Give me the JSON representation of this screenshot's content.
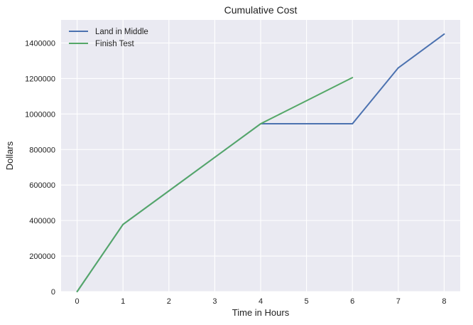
{
  "chart_data": {
    "type": "line",
    "title": "Cumulative Cost",
    "xlabel": "Time in Hours",
    "ylabel": "Dollars",
    "xlim": [
      -0.35,
      8.35
    ],
    "ylim": [
      0,
      1530000
    ],
    "xticks": [
      0,
      1,
      2,
      3,
      4,
      5,
      6,
      7,
      8
    ],
    "xtick_labels": [
      "0",
      "1",
      "2",
      "3",
      "4",
      "5",
      "6",
      "7",
      "8"
    ],
    "yticks": [
      0,
      200000,
      400000,
      600000,
      800000,
      1000000,
      1200000,
      1400000
    ],
    "ytick_labels": [
      "0",
      "200000",
      "400000",
      "600000",
      "800000",
      "1000000",
      "1200000",
      "1400000"
    ],
    "grid": true,
    "legend_position": "top-left",
    "background": "#eaeaf2",
    "series": [
      {
        "name": "Land in Middle",
        "color": "#4c72b0",
        "x": [
          0,
          1,
          2,
          3,
          4,
          5,
          6,
          7,
          8
        ],
        "y": [
          0,
          378000,
          567000,
          756000,
          945000,
          945000,
          945000,
          1260000,
          1450000
        ]
      },
      {
        "name": "Finish Test",
        "color": "#55a868",
        "x": [
          0,
          1,
          2,
          3,
          4,
          5,
          6
        ],
        "y": [
          0,
          378000,
          567000,
          756000,
          945000,
          1075000,
          1205000
        ]
      }
    ]
  }
}
